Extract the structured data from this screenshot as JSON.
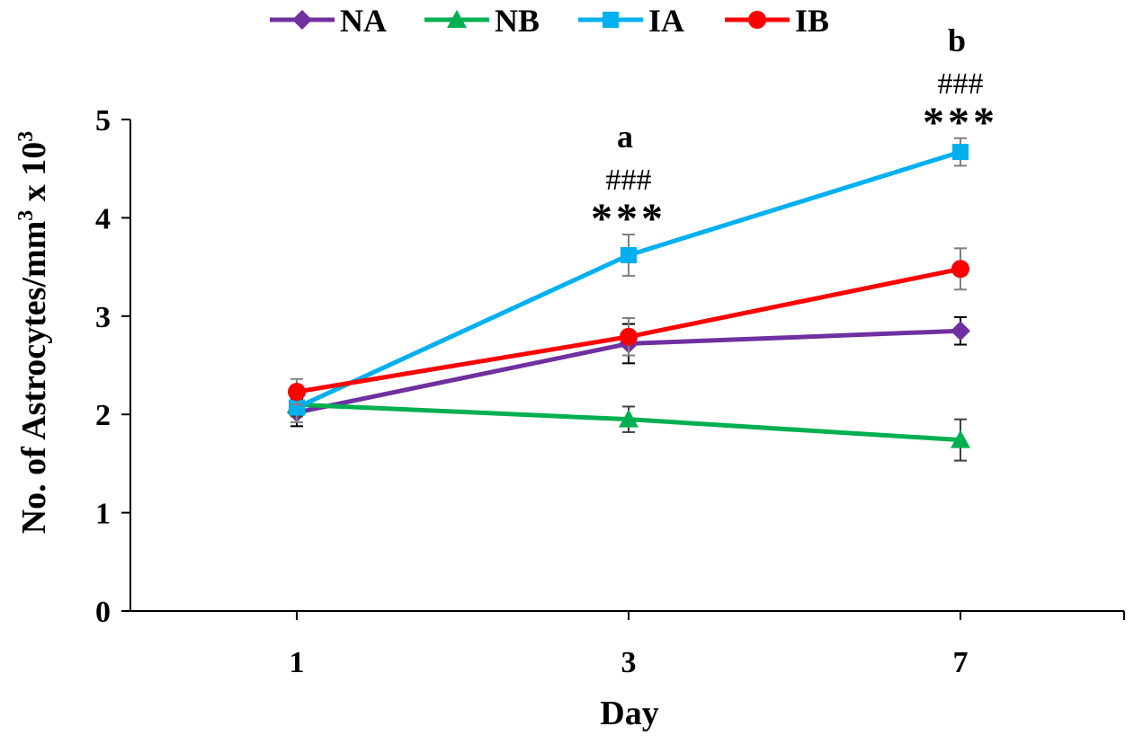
{
  "chart_data": {
    "type": "line",
    "title": "",
    "xlabel": "Day",
    "ylabel": "No. of Astrocytes/mm",
    "ylabel_sup1": "3",
    "ylabel_mid": " x 10",
    "ylabel_sup2": "3",
    "categories": [
      "1",
      "3",
      "7"
    ],
    "ylim": [
      0,
      5
    ],
    "yticks": [
      "0",
      "1",
      "2",
      "3",
      "4",
      "5"
    ],
    "legend_position": "top",
    "series": [
      {
        "name": "NA",
        "color": "#7030a0",
        "marker": "diamond",
        "values": [
          2.02,
          2.72,
          2.85
        ],
        "errors": [
          0.14,
          0.2,
          0.14
        ]
      },
      {
        "name": "NB",
        "color": "#00b050",
        "marker": "triangle",
        "values": [
          2.1,
          1.95,
          1.74
        ],
        "errors": [
          0.12,
          0.13,
          0.21
        ]
      },
      {
        "name": "IA",
        "color": "#00b0f0",
        "marker": "square",
        "values": [
          2.07,
          3.62,
          4.67
        ],
        "errors": [
          0.15,
          0.21,
          0.14
        ]
      },
      {
        "name": "IB",
        "color": "#ff0000",
        "marker": "circle",
        "values": [
          2.23,
          2.79,
          3.48
        ],
        "errors": [
          0.13,
          0.19,
          0.21
        ]
      }
    ],
    "annotations": [
      {
        "category": "3",
        "letter": "a",
        "hash": "###",
        "stars": "***"
      },
      {
        "category": "7",
        "letter": "b",
        "hash": "###",
        "stars": "***"
      }
    ]
  }
}
